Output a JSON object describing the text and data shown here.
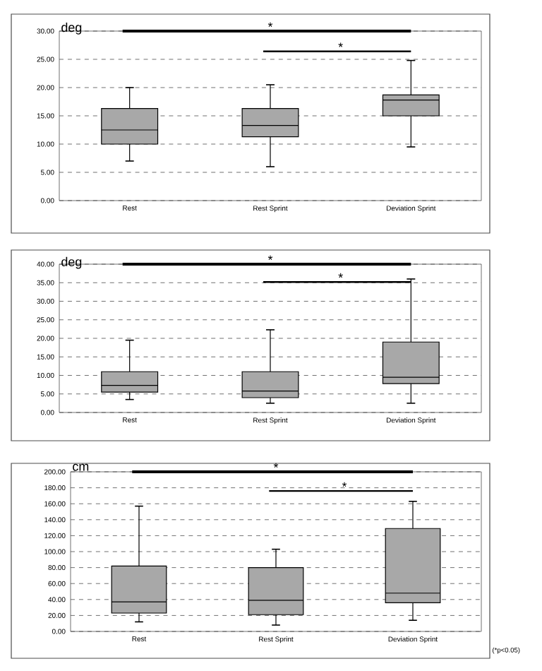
{
  "chart_data": [
    {
      "type": "box",
      "ylabel": "deg",
      "categories": [
        "Rest",
        "Rest Sprint",
        "Deviation Sprint"
      ],
      "series": [
        {
          "color": "#a8a8a8",
          "boxes": [
            {
              "low": 7,
              "q1": 10,
              "median": 12.5,
              "q3": 16.3,
              "high": 20
            },
            {
              "low": 6,
              "q1": 11.3,
              "median": 13.3,
              "q3": 16.3,
              "high": 20.5
            },
            {
              "low": 9.5,
              "q1": 15,
              "median": 17.8,
              "q3": 18.7,
              "high": 24.8
            }
          ]
        }
      ],
      "ylim": [
        0,
        30
      ],
      "yticks": [
        {
          "value": 0,
          "label": "0.00"
        },
        {
          "value": 5,
          "label": "5.00"
        },
        {
          "value": 10,
          "label": "10.00"
        },
        {
          "value": 15,
          "label": "15.00"
        },
        {
          "value": 20,
          "label": "20.00"
        },
        {
          "value": 25,
          "label": "25.00"
        },
        {
          "value": 30,
          "label": "30.00"
        }
      ],
      "grid": "y",
      "annotations": [
        "*",
        "*"
      ]
    },
    {
      "type": "box",
      "ylabel": "deg",
      "categories": [
        "Rest",
        "Rest Sprint",
        "Deviation Sprint"
      ],
      "series": [
        {
          "color": "#a8a8a8",
          "boxes": [
            {
              "low": 3.5,
              "q1": 5.5,
              "median": 7.3,
              "q3": 11,
              "high": 19.5
            },
            {
              "low": 2.5,
              "q1": 4,
              "median": 5.8,
              "q3": 11,
              "high": 22.3
            },
            {
              "low": 2.5,
              "q1": 7.8,
              "median": 9.5,
              "q3": 19,
              "high": 36
            }
          ]
        }
      ],
      "ylim": [
        0,
        40
      ],
      "yticks": [
        {
          "value": 0,
          "label": "0.00"
        },
        {
          "value": 5,
          "label": "5.00"
        },
        {
          "value": 10,
          "label": "10.00"
        },
        {
          "value": 15,
          "label": "15.00"
        },
        {
          "value": 20,
          "label": "20.00"
        },
        {
          "value": 25,
          "label": "25.00"
        },
        {
          "value": 30,
          "label": "30.00"
        },
        {
          "value": 35,
          "label": "35.00"
        },
        {
          "value": 40,
          "label": "40.00"
        }
      ],
      "grid": "y",
      "annotations": [
        "*",
        "*"
      ]
    },
    {
      "type": "box",
      "ylabel": "cm",
      "categories": [
        "Rest",
        "Rest Sprint",
        "Deviation Sprint"
      ],
      "series": [
        {
          "color": "#a8a8a8",
          "boxes": [
            {
              "low": 12,
              "q1": 23,
              "median": 37,
              "q3": 82,
              "high": 157
            },
            {
              "low": 8,
              "q1": 21,
              "median": 39,
              "q3": 80,
              "high": 103
            },
            {
              "low": 14,
              "q1": 36,
              "median": 48,
              "q3": 129,
              "high": 163
            }
          ]
        }
      ],
      "ylim": [
        0,
        200
      ],
      "yticks": [
        {
          "value": 0,
          "label": "0.00"
        },
        {
          "value": 20,
          "label": "20.00"
        },
        {
          "value": 40,
          "label": "40.00"
        },
        {
          "value": 60,
          "label": "60.00"
        },
        {
          "value": 80,
          "label": "80.00"
        },
        {
          "value": 100,
          "label": "100.00"
        },
        {
          "value": 120,
          "label": "120.00"
        },
        {
          "value": 140,
          "label": "140.00"
        },
        {
          "value": 160,
          "label": "160.00"
        },
        {
          "value": 180,
          "label": "180.00"
        },
        {
          "value": 200,
          "label": "200.00"
        }
      ],
      "grid": "y",
      "annotations": [
        "*",
        "*",
        "(*p<0.05)"
      ]
    }
  ]
}
